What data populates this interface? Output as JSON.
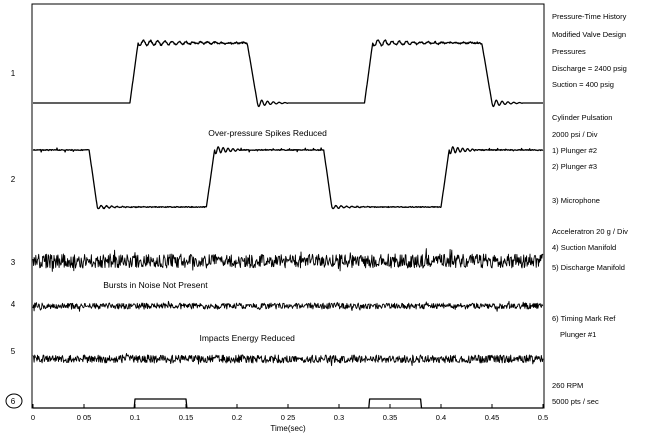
{
  "chart_data": {
    "type": "line",
    "title": "",
    "xlabel": "Time(sec)",
    "ylabel": "",
    "xlim": [
      0,
      0.5
    ],
    "x_ticks": [
      0,
      0.05,
      0.1,
      0.15,
      0.2,
      0.25,
      0.3,
      0.35,
      0.4,
      0.45,
      0.5
    ],
    "x_tick_labels": [
      "0",
      "0 05",
      "0.1",
      "0.15",
      "0.2",
      "0 25",
      "0.3",
      "0.35",
      "0.4",
      "0.45",
      "0.5"
    ],
    "grid": false,
    "channels": [
      {
        "id": "1",
        "label": "1",
        "kind": "square",
        "low_level": 400,
        "high_level": 2400,
        "units": "psig",
        "high_intervals": [
          [
            0.095,
            0.21
          ],
          [
            0.325,
            0.44
          ]
        ]
      },
      {
        "id": "2",
        "label": "2",
        "kind": "square",
        "low_level": 400,
        "high_level": 2400,
        "units": "psig",
        "low_intervals": [
          [
            0.055,
            0.17
          ],
          [
            0.285,
            0.4
          ]
        ]
      },
      {
        "id": "3",
        "label": "3",
        "kind": "noise"
      },
      {
        "id": "4",
        "label": "4",
        "kind": "noise"
      },
      {
        "id": "5",
        "label": "5",
        "kind": "noise"
      },
      {
        "id": "6",
        "label": "6",
        "kind": "pulse",
        "high_intervals": [
          [
            0.1,
            0.15
          ],
          [
            0.33,
            0.38
          ]
        ]
      }
    ],
    "annotations": [
      {
        "text": "Over-pressure Spikes Reduced",
        "x": 0.23,
        "channel": "2"
      },
      {
        "text": "Bursts in Noise Not Present",
        "x": 0.12,
        "channel": "4"
      },
      {
        "text": "Impacts Energy Reduced",
        "x": 0.21,
        "channel": "5"
      }
    ],
    "legend": [
      "Pressure-Time History",
      "Modified Valve Design",
      "Pressures",
      "Discharge = 2400 psig",
      "Suction = 400 psig",
      "Cylinder Pulsation",
      "2000 psi / Div",
      "1) Plunger #2",
      "2) Plunger #3",
      "3) Microphone",
      "Acceleratron  20 g / Div",
      "4) Suction Manifold",
      "5) Discharge Manifold",
      "6) Timing Mark  Ref",
      "Plunger #1",
      "260 RPM",
      "5000 pts / sec"
    ]
  }
}
